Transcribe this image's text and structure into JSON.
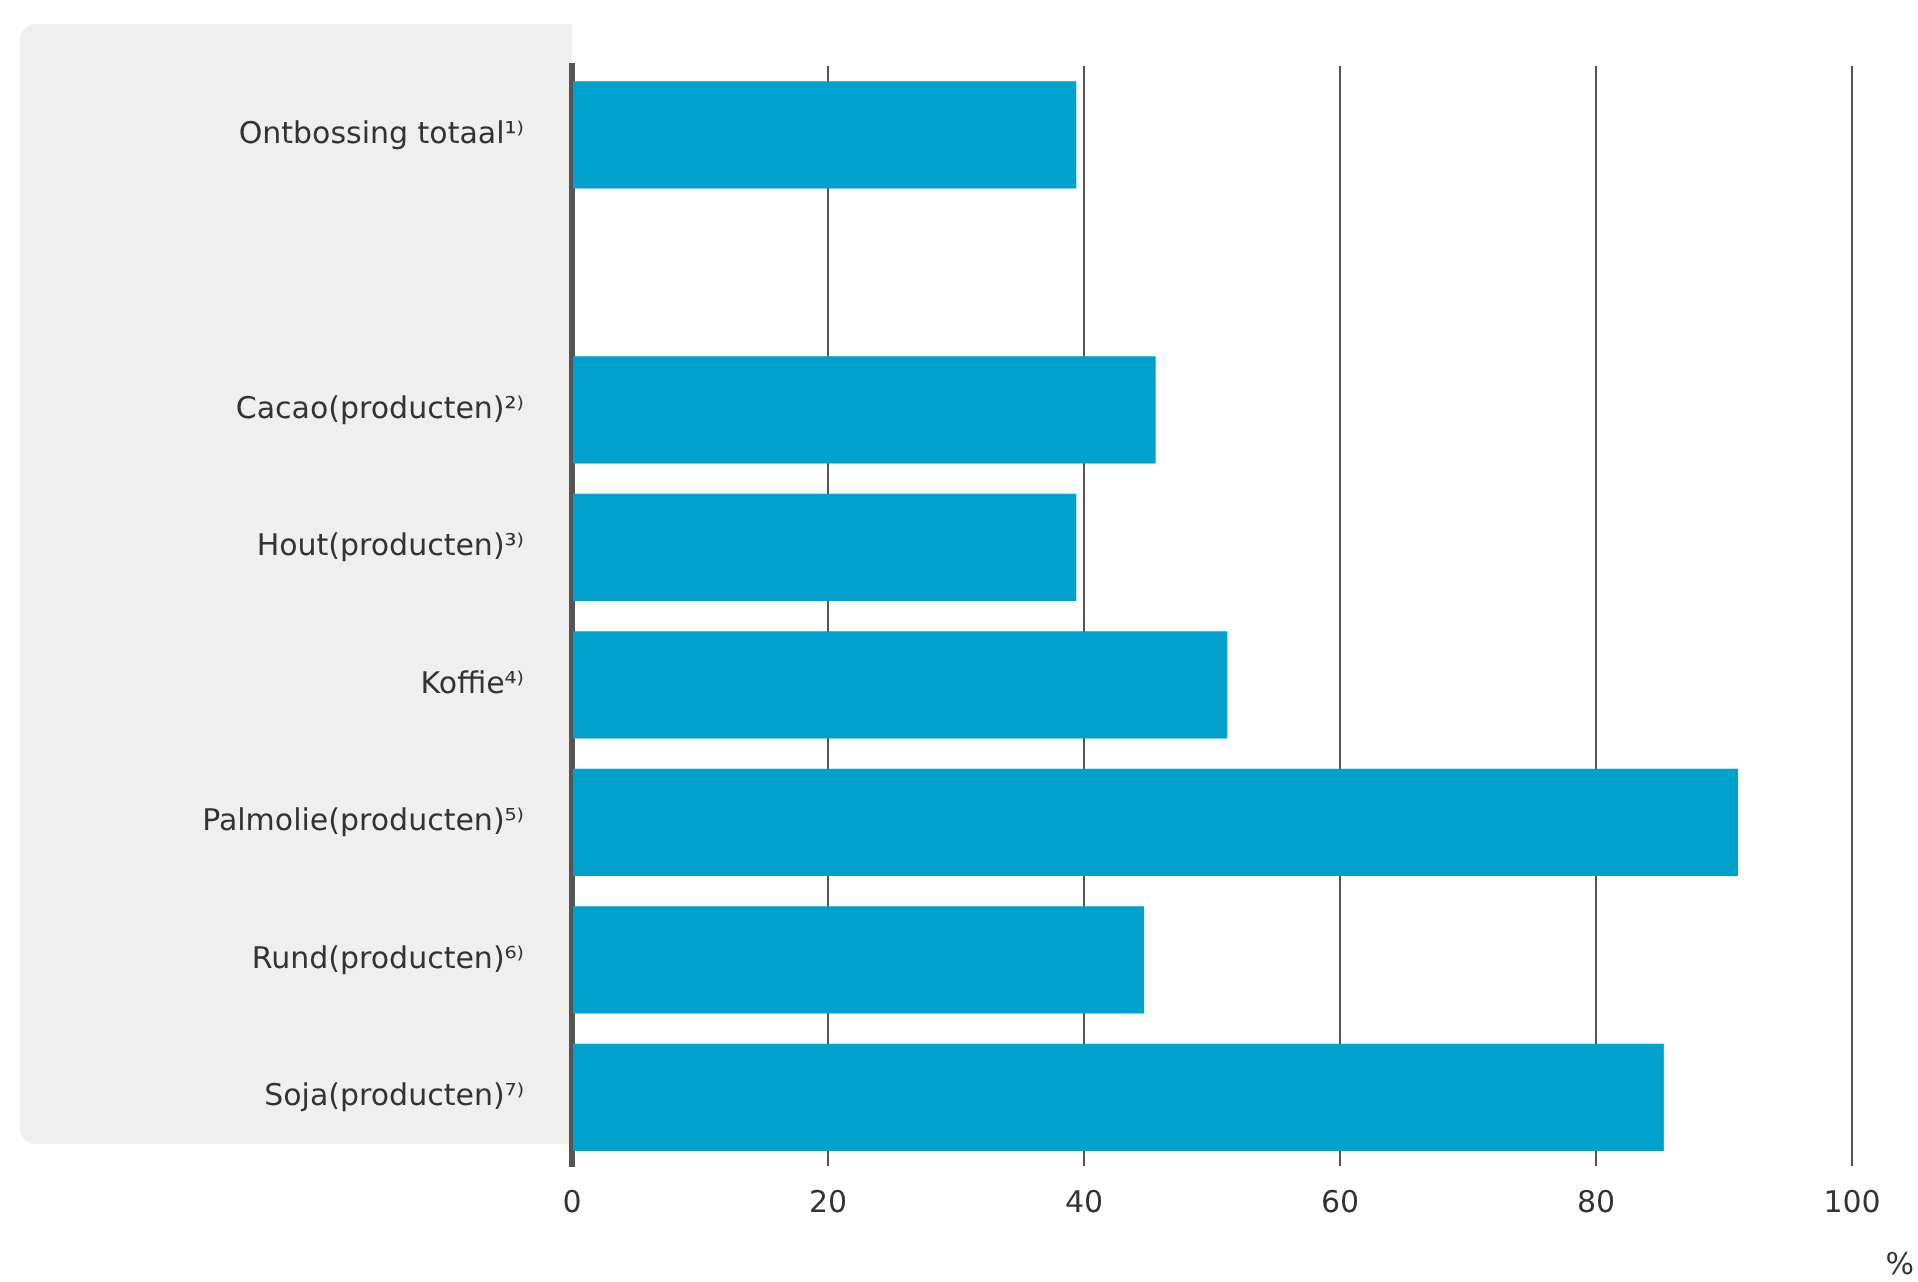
{
  "chart_data": {
    "type": "bar",
    "orientation": "horizontal",
    "xlabel": "%",
    "categories": [
      "Ontbossing totaal¹⁾",
      null,
      "Cacao(producten)²⁾",
      "Hout(producten)³⁾",
      "Koffie⁴⁾",
      "Palmolie(producten)⁵⁾",
      "Rund(producten)⁶⁾",
      "Soja(producten)⁷⁾"
    ],
    "values": [
      39.4,
      null,
      45.6,
      39.4,
      51.2,
      91.1,
      44.7,
      85.3
    ],
    "color": "#00a1cd",
    "xlim": [
      0,
      100
    ],
    "xticks": [
      0,
      20,
      40,
      60,
      80,
      100
    ],
    "grid": "x",
    "legend": false
  }
}
